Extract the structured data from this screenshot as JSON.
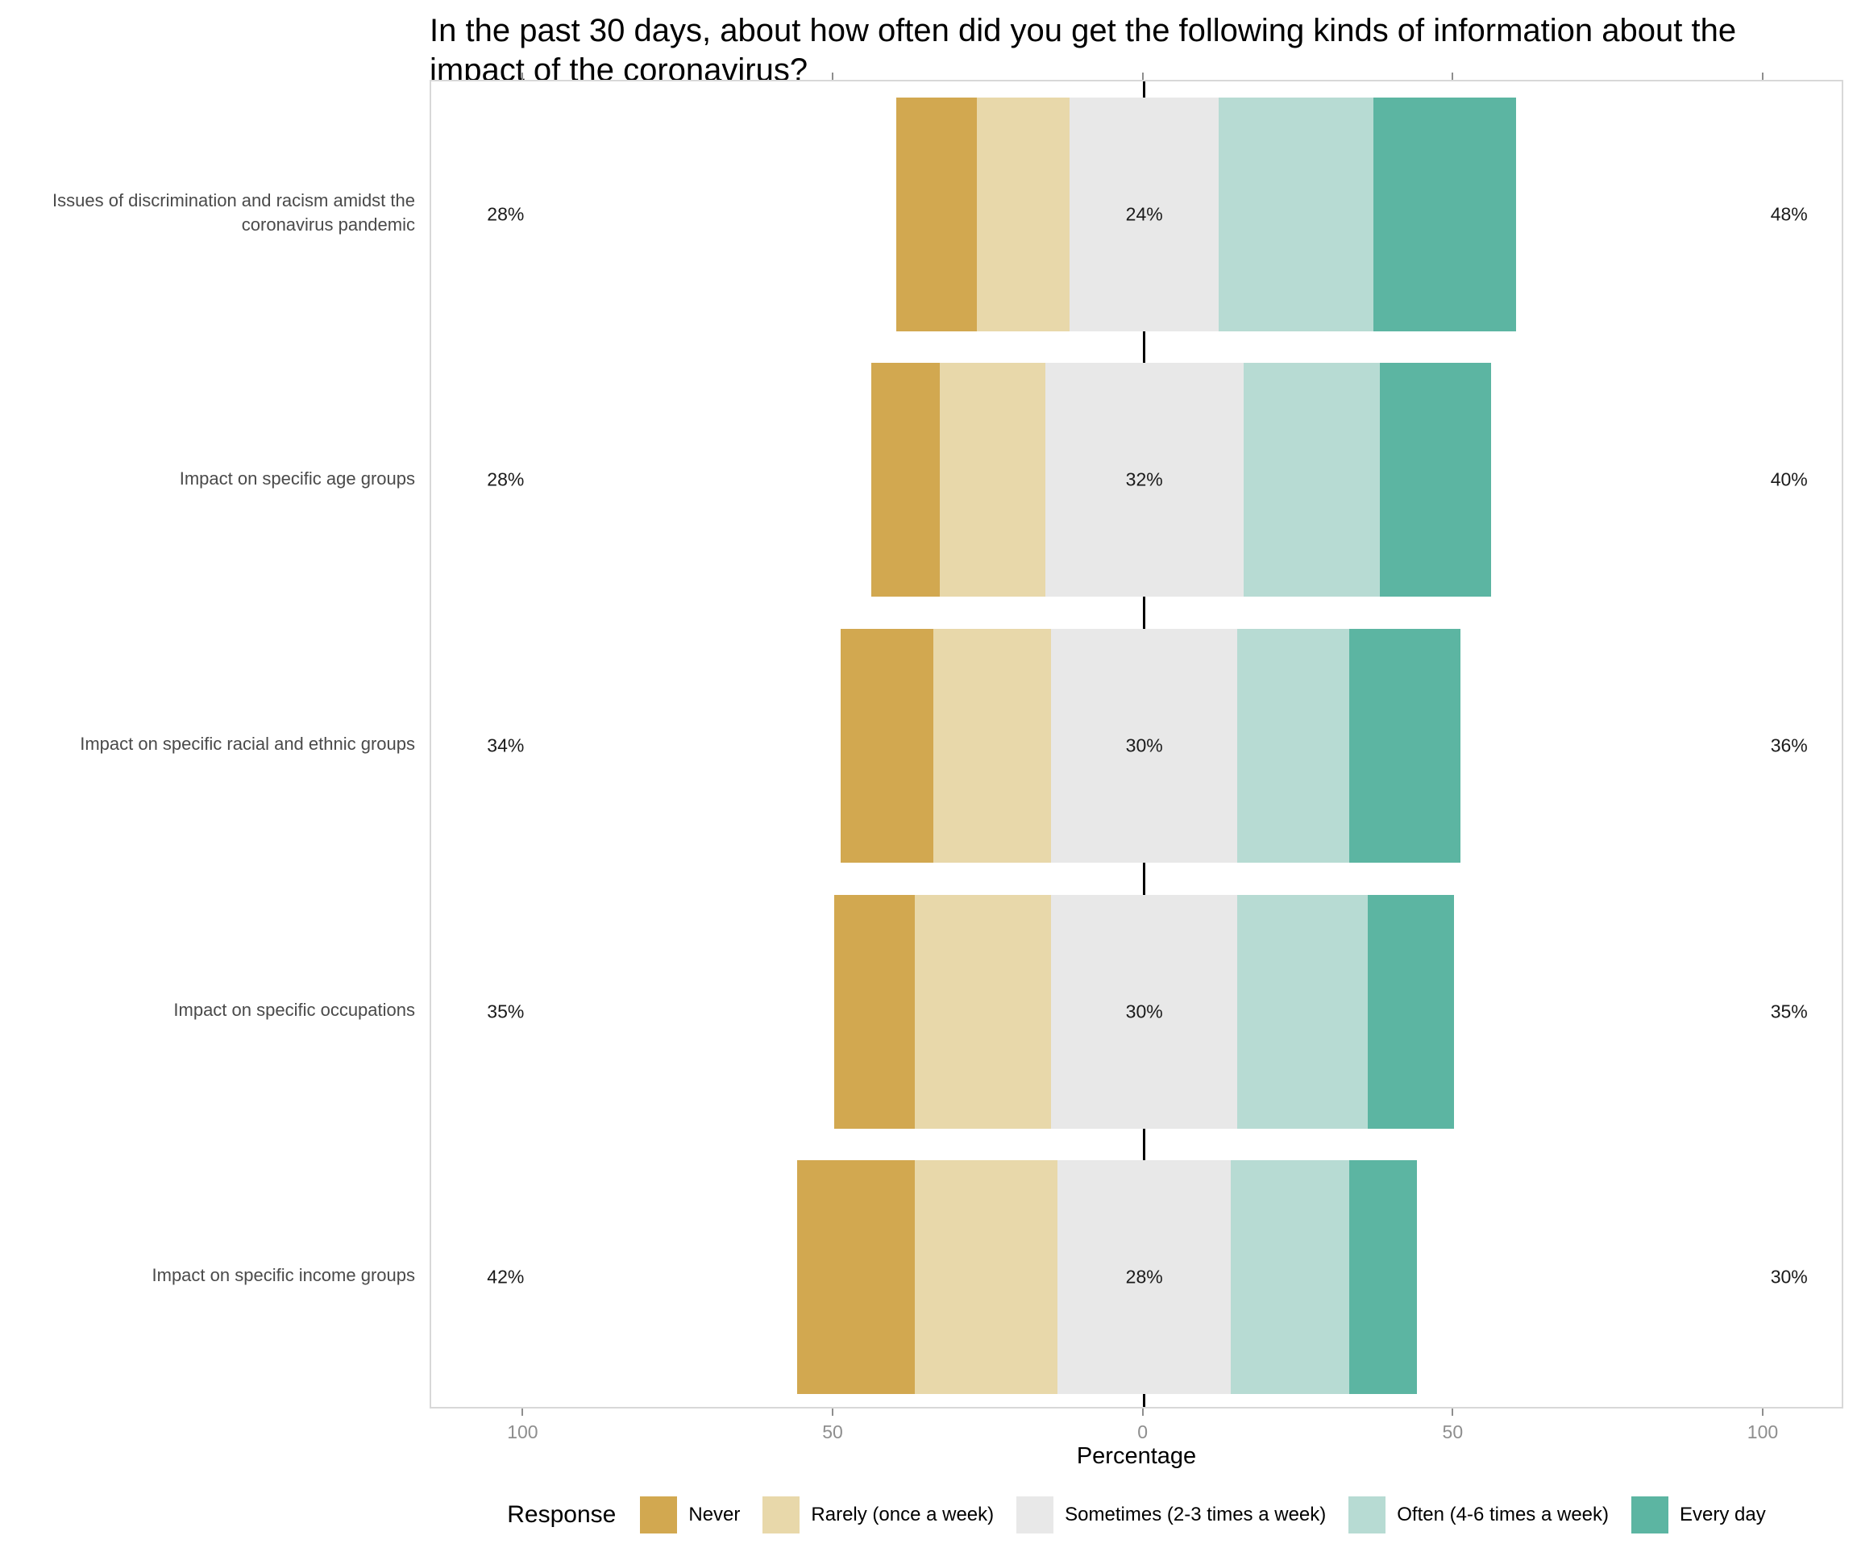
{
  "chart_data": {
    "type": "diverging-stacked-bar",
    "title": "In the past 30 days, about how often did you get the following kinds of information about the\nimpact of the coronavirus?",
    "xlabel": "Percentage",
    "legend_title": "Response",
    "legend_position": "bottom",
    "x_ticks": [
      -100,
      -50,
      0,
      50,
      100
    ],
    "x_tick_labels": [
      "100",
      "50",
      "0",
      "50",
      "100"
    ],
    "xlim": [
      -115,
      113
    ],
    "grid": false,
    "series": [
      {
        "name": "Never",
        "color": "#d2a850"
      },
      {
        "name": "Rarely (once a week)",
        "color": "#e8d8aa"
      },
      {
        "name": "Sometimes (2-3 times a week)",
        "color": "#e8e8e8"
      },
      {
        "name": "Often (4-6 times a week)",
        "color": "#b7dbd3"
      },
      {
        "name": "Every day",
        "color": "#5cb5a2"
      }
    ],
    "rows": [
      {
        "category": "Issues of discrimination and racism amidst the coronavirus pandemic",
        "values": [
          13,
          15,
          24,
          25,
          23
        ],
        "left_label": "28%",
        "center_label": "24%",
        "right_label": "48%"
      },
      {
        "category": "Impact on specific age groups",
        "values": [
          11,
          17,
          32,
          22,
          18
        ],
        "left_label": "28%",
        "center_label": "32%",
        "right_label": "40%"
      },
      {
        "category": "Impact on specific racial and ethnic groups",
        "values": [
          15,
          19,
          30,
          18,
          18
        ],
        "left_label": "34%",
        "center_label": "30%",
        "right_label": "36%"
      },
      {
        "category": "Impact on specific occupations",
        "values": [
          13,
          22,
          30,
          21,
          14
        ],
        "left_label": "35%",
        "center_label": "30%",
        "right_label": "35%"
      },
      {
        "category": "Impact on specific income groups",
        "values": [
          19,
          23,
          28,
          19,
          11
        ],
        "left_label": "42%",
        "center_label": "28%",
        "right_label": "30%"
      }
    ],
    "label_positions": {
      "left_x": -103,
      "right_x": 104
    },
    "zero_line_color": "#000000"
  }
}
